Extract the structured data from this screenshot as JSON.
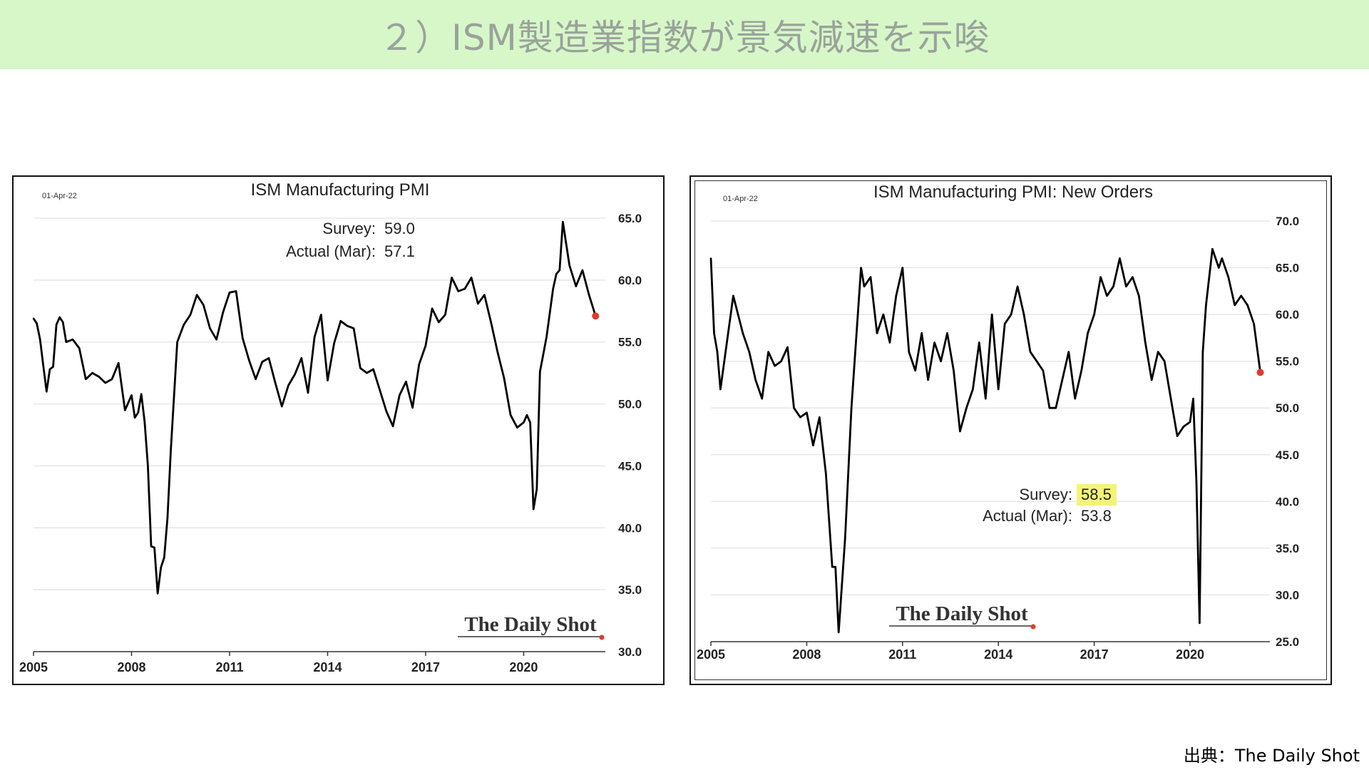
{
  "page": {
    "title": "２）ISM製造業指数が景気減速を示唆",
    "source": "出典：The Daily Shot"
  },
  "colors": {
    "line": "#000000",
    "marker": "#e03a2e",
    "grid": "#e2e2e2",
    "highlight": "#f3f37a",
    "title_bar": "#d7f7c9"
  },
  "chart_data": [
    {
      "type": "line",
      "title": "ISM Manufacturing PMI",
      "date_label": "01-Apr-22",
      "xlabel": "",
      "ylabel": "",
      "xlim": [
        2005,
        2022.5
      ],
      "ylim": [
        30,
        65
      ],
      "x_ticks": [
        "2005",
        "2008",
        "2011",
        "2014",
        "2017",
        "2020"
      ],
      "y_ticks": [
        "30.0",
        "35.0",
        "40.0",
        "45.0",
        "50.0",
        "55.0",
        "60.0",
        "65.0"
      ],
      "y_tick_values": [
        30,
        35,
        40,
        45,
        50,
        55,
        60,
        65
      ],
      "annotation": {
        "survey_label": "Survey:",
        "survey_value": "59.0",
        "actual_label": "Actual (Mar):",
        "actual_value": "57.1"
      },
      "watermark": "The Daily Shot",
      "grid": true,
      "series": [
        {
          "x": [
            2005.0,
            2005.1,
            2005.2,
            2005.3,
            2005.4,
            2005.5,
            2005.6,
            2005.7,
            2005.8,
            2005.9,
            2006.0,
            2006.2,
            2006.4,
            2006.6,
            2006.8,
            2007.0,
            2007.2,
            2007.4,
            2007.6,
            2007.8,
            2008.0,
            2008.1,
            2008.2,
            2008.3,
            2008.4,
            2008.5,
            2008.6,
            2008.7,
            2008.8,
            2008.9,
            2009.0,
            2009.1,
            2009.2,
            2009.4,
            2009.6,
            2009.8,
            2010.0,
            2010.2,
            2010.4,
            2010.6,
            2010.8,
            2011.0,
            2011.2,
            2011.4,
            2011.6,
            2011.8,
            2012.0,
            2012.2,
            2012.4,
            2012.6,
            2012.8,
            2013.0,
            2013.2,
            2013.4,
            2013.6,
            2013.8,
            2014.0,
            2014.2,
            2014.4,
            2014.6,
            2014.8,
            2015.0,
            2015.2,
            2015.4,
            2015.6,
            2015.8,
            2016.0,
            2016.2,
            2016.4,
            2016.6,
            2016.8,
            2017.0,
            2017.2,
            2017.4,
            2017.6,
            2017.8,
            2018.0,
            2018.2,
            2018.4,
            2018.6,
            2018.8,
            2019.0,
            2019.2,
            2019.4,
            2019.6,
            2019.8,
            2020.0,
            2020.1,
            2020.2,
            2020.3,
            2020.4,
            2020.5,
            2020.7,
            2020.9,
            2021.0,
            2021.1,
            2021.2,
            2021.4,
            2021.6,
            2021.8,
            2022.0,
            2022.2
          ],
          "y": [
            56.9,
            56.5,
            55.2,
            53.1,
            51.0,
            52.8,
            53.0,
            56.4,
            57.0,
            56.6,
            55.0,
            55.2,
            54.5,
            52.0,
            52.5,
            52.2,
            51.7,
            52.0,
            53.3,
            49.5,
            50.7,
            48.9,
            49.3,
            50.8,
            48.6,
            45.0,
            38.5,
            38.4,
            34.7,
            36.8,
            37.6,
            40.8,
            46.2,
            55.0,
            56.4,
            57.2,
            58.8,
            58.0,
            56.1,
            55.2,
            57.4,
            59.0,
            59.1,
            55.3,
            53.5,
            52.0,
            53.4,
            53.7,
            51.7,
            49.8,
            51.5,
            52.4,
            53.7,
            50.9,
            55.4,
            57.2,
            51.9,
            54.9,
            56.7,
            56.3,
            56.1,
            52.9,
            52.5,
            52.8,
            51.1,
            49.4,
            48.2,
            50.7,
            51.8,
            49.7,
            53.2,
            54.7,
            57.7,
            56.6,
            57.2,
            60.2,
            59.1,
            59.3,
            60.2,
            58.1,
            58.8,
            56.6,
            54.2,
            52.1,
            49.1,
            48.1,
            48.5,
            49.1,
            48.5,
            41.5,
            43.1,
            52.6,
            55.4,
            59.3,
            60.5,
            60.8,
            64.7,
            61.2,
            59.5,
            60.8,
            58.8,
            57.1
          ]
        }
      ]
    },
    {
      "type": "line",
      "title": "ISM Manufacturing PMI: New Orders",
      "date_label": "01-Apr-22",
      "xlabel": "",
      "ylabel": "",
      "xlim": [
        2005,
        2022.5
      ],
      "ylim": [
        25,
        70
      ],
      "x_ticks": [
        "2005",
        "2008",
        "2011",
        "2014",
        "2017",
        "2020"
      ],
      "y_ticks": [
        "25.0",
        "30.0",
        "35.0",
        "40.0",
        "45.0",
        "50.0",
        "55.0",
        "60.0",
        "65.0",
        "70.0"
      ],
      "y_tick_values": [
        25,
        30,
        35,
        40,
        45,
        50,
        55,
        60,
        65,
        70
      ],
      "annotation": {
        "survey_label": "Survey:",
        "survey_value": "58.5",
        "actual_label": "Actual (Mar):",
        "actual_value": "53.8"
      },
      "watermark": "The Daily Shot",
      "grid": true,
      "series": [
        {
          "x": [
            2005.0,
            2005.1,
            2005.2,
            2005.3,
            2005.5,
            2005.7,
            2006.0,
            2006.2,
            2006.4,
            2006.6,
            2006.8,
            2007.0,
            2007.2,
            2007.4,
            2007.6,
            2007.8,
            2008.0,
            2008.2,
            2008.4,
            2008.6,
            2008.8,
            2008.9,
            2009.0,
            2009.1,
            2009.2,
            2009.4,
            2009.6,
            2009.7,
            2009.8,
            2010.0,
            2010.2,
            2010.4,
            2010.6,
            2010.8,
            2011.0,
            2011.2,
            2011.4,
            2011.6,
            2011.8,
            2012.0,
            2012.2,
            2012.4,
            2012.6,
            2012.8,
            2013.0,
            2013.2,
            2013.4,
            2013.6,
            2013.8,
            2014.0,
            2014.2,
            2014.4,
            2014.6,
            2014.8,
            2015.0,
            2015.2,
            2015.4,
            2015.6,
            2015.8,
            2016.0,
            2016.2,
            2016.4,
            2016.6,
            2016.8,
            2017.0,
            2017.2,
            2017.4,
            2017.6,
            2017.8,
            2018.0,
            2018.2,
            2018.4,
            2018.6,
            2018.8,
            2019.0,
            2019.2,
            2019.4,
            2019.6,
            2019.8,
            2020.0,
            2020.1,
            2020.2,
            2020.3,
            2020.4,
            2020.5,
            2020.7,
            2020.9,
            2021.0,
            2021.2,
            2021.4,
            2021.6,
            2021.8,
            2022.0,
            2022.2
          ],
          "y": [
            66.0,
            58.0,
            56.0,
            52.0,
            57.0,
            62.0,
            58.0,
            56.0,
            53.0,
            51.0,
            56.0,
            54.5,
            55.0,
            56.5,
            50.0,
            49.0,
            49.5,
            46.0,
            49.0,
            43.0,
            33.0,
            33.0,
            26.0,
            31.0,
            36.0,
            50.0,
            60.0,
            65.0,
            63.0,
            64.0,
            58.0,
            60.0,
            57.0,
            62.0,
            65.0,
            56.0,
            54.0,
            58.0,
            53.0,
            57.0,
            55.0,
            58.0,
            54.0,
            47.5,
            50.0,
            52.0,
            57.0,
            51.0,
            60.0,
            52.0,
            59.0,
            60.0,
            63.0,
            60.0,
            56.0,
            55.0,
            54.0,
            50.0,
            50.0,
            53.0,
            56.0,
            51.0,
            54.0,
            58.0,
            60.0,
            64.0,
            62.0,
            63.0,
            66.0,
            63.0,
            64.0,
            62.0,
            57.0,
            53.0,
            56.0,
            55.0,
            51.0,
            47.0,
            48.0,
            48.5,
            51.0,
            42.0,
            27.0,
            56.0,
            61.0,
            67.0,
            65.0,
            66.0,
            64.0,
            61.0,
            62.0,
            61.0,
            59.0,
            53.8
          ]
        }
      ]
    }
  ]
}
